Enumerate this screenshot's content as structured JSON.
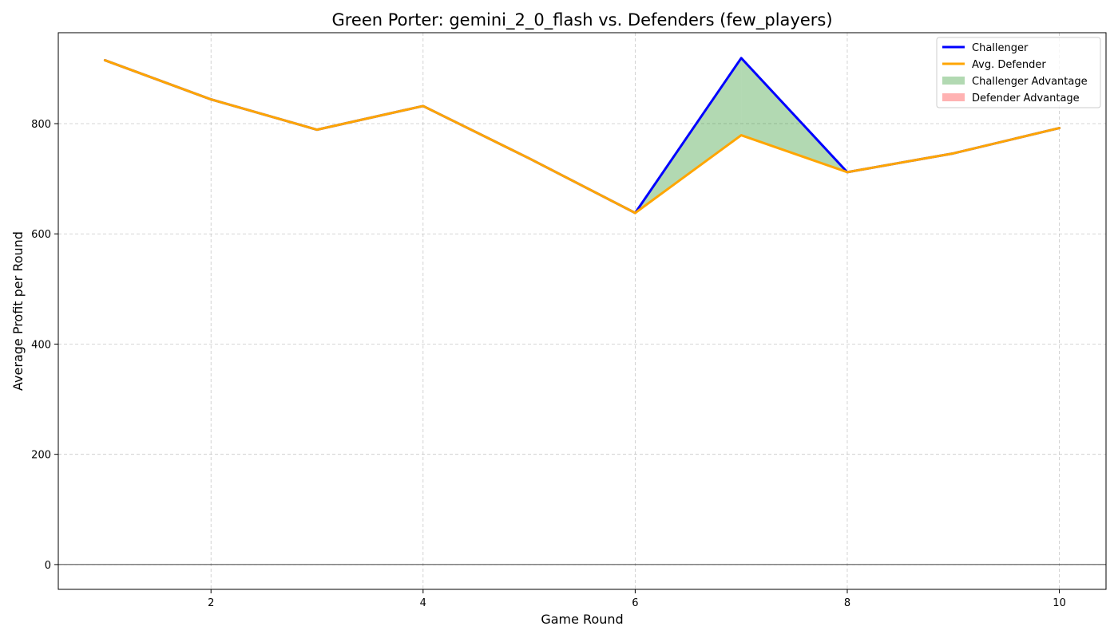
{
  "chart_data": {
    "type": "line",
    "title": "Green Porter: gemini_2_0_flash vs. Defenders (few_players)",
    "xlabel": "Game Round",
    "ylabel": "Average Profit per Round",
    "xlim": [
      0.56,
      10.44
    ],
    "ylim": [
      -45,
      965
    ],
    "xticks": [
      2,
      4,
      6,
      8,
      10
    ],
    "yticks": [
      0,
      200,
      400,
      600,
      800
    ],
    "x": [
      1,
      2,
      3,
      4,
      5,
      6,
      7,
      8,
      9,
      10
    ],
    "grid": true,
    "legend_position": "top-right",
    "series": [
      {
        "name": "Challenger",
        "color": "#0000ff",
        "values": [
          915,
          844,
          789,
          832,
          737,
          638,
          919,
          712,
          746,
          792
        ]
      },
      {
        "name": "Avg. Defender",
        "color": "#ffa500",
        "values": [
          915,
          844,
          789,
          832,
          737,
          638,
          779,
          712,
          746,
          792
        ]
      }
    ],
    "fill_legend": [
      {
        "name": "Challenger Advantage",
        "color": "#008000",
        "opacity": 0.3
      },
      {
        "name": "Defender Advantage",
        "color": "#ff0000",
        "opacity": 0.3
      }
    ]
  }
}
